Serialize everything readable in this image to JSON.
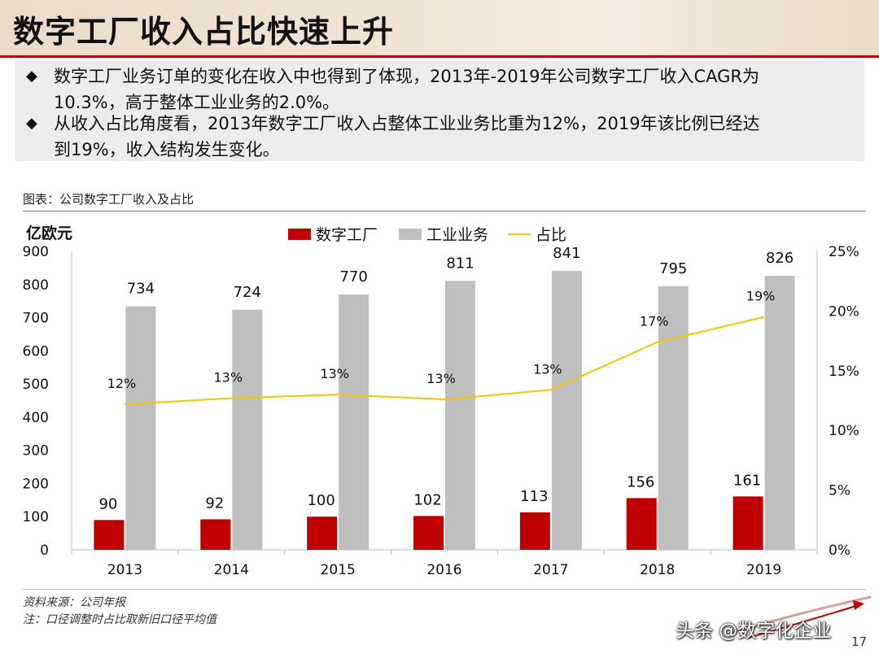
{
  "header": {
    "title": "数字工厂收入占比快速上升"
  },
  "summary": {
    "bullets": [
      {
        "mark": "◆",
        "line1": "数字工厂业务订单的变化在收入中也得到了体现，2013年-2019年公司数字工厂收入CAGR为",
        "line2": "10.3%，高于整体工业业务的2.0%。"
      },
      {
        "mark": "◆",
        "line1": "从收入占比角度看，2013年数字工厂收入占整体工业业务比重为12%，2019年该比例已经达",
        "line2": "到19%，收入结构发生变化。"
      }
    ]
  },
  "chart_caption": "图表：公司数字工厂收入及占比",
  "chart_data": {
    "type": "bar",
    "categories": [
      "2013",
      "2014",
      "2015",
      "2016",
      "2017",
      "2018",
      "2019"
    ],
    "series": [
      {
        "name": "数字工厂",
        "kind": "bar",
        "color": "#c00000",
        "values": [
          90,
          92,
          100,
          102,
          113,
          156,
          161
        ]
      },
      {
        "name": "工业业务",
        "kind": "bar",
        "color": "#bfbfbf",
        "values": [
          734,
          724,
          770,
          811,
          841,
          795,
          826
        ]
      },
      {
        "name": "占比",
        "kind": "line",
        "axis": "right",
        "color": "#f5c400",
        "values": [
          12.2,
          12.7,
          13.0,
          12.6,
          13.4,
          17.4,
          19.5
        ],
        "labels": [
          "12%",
          "13%",
          "13%",
          "13%",
          "13%",
          "17%",
          "19%"
        ]
      }
    ],
    "ylabel": "亿欧元",
    "ylim": [
      0,
      900
    ],
    "yticks": [
      "0",
      "100",
      "200",
      "300",
      "400",
      "500",
      "600",
      "700",
      "800",
      "900"
    ],
    "y2lim": [
      0,
      25
    ],
    "y2ticks": [
      "0%",
      "5%",
      "10%",
      "15%",
      "20%",
      "25%"
    ],
    "legend": "top-center",
    "grid": false
  },
  "notes": {
    "source": "资料来源：公司年报",
    "note": "注：口径调整时占比取新旧口径平均值"
  },
  "watermark": "头条 @数字化企业",
  "page_number": "17"
}
